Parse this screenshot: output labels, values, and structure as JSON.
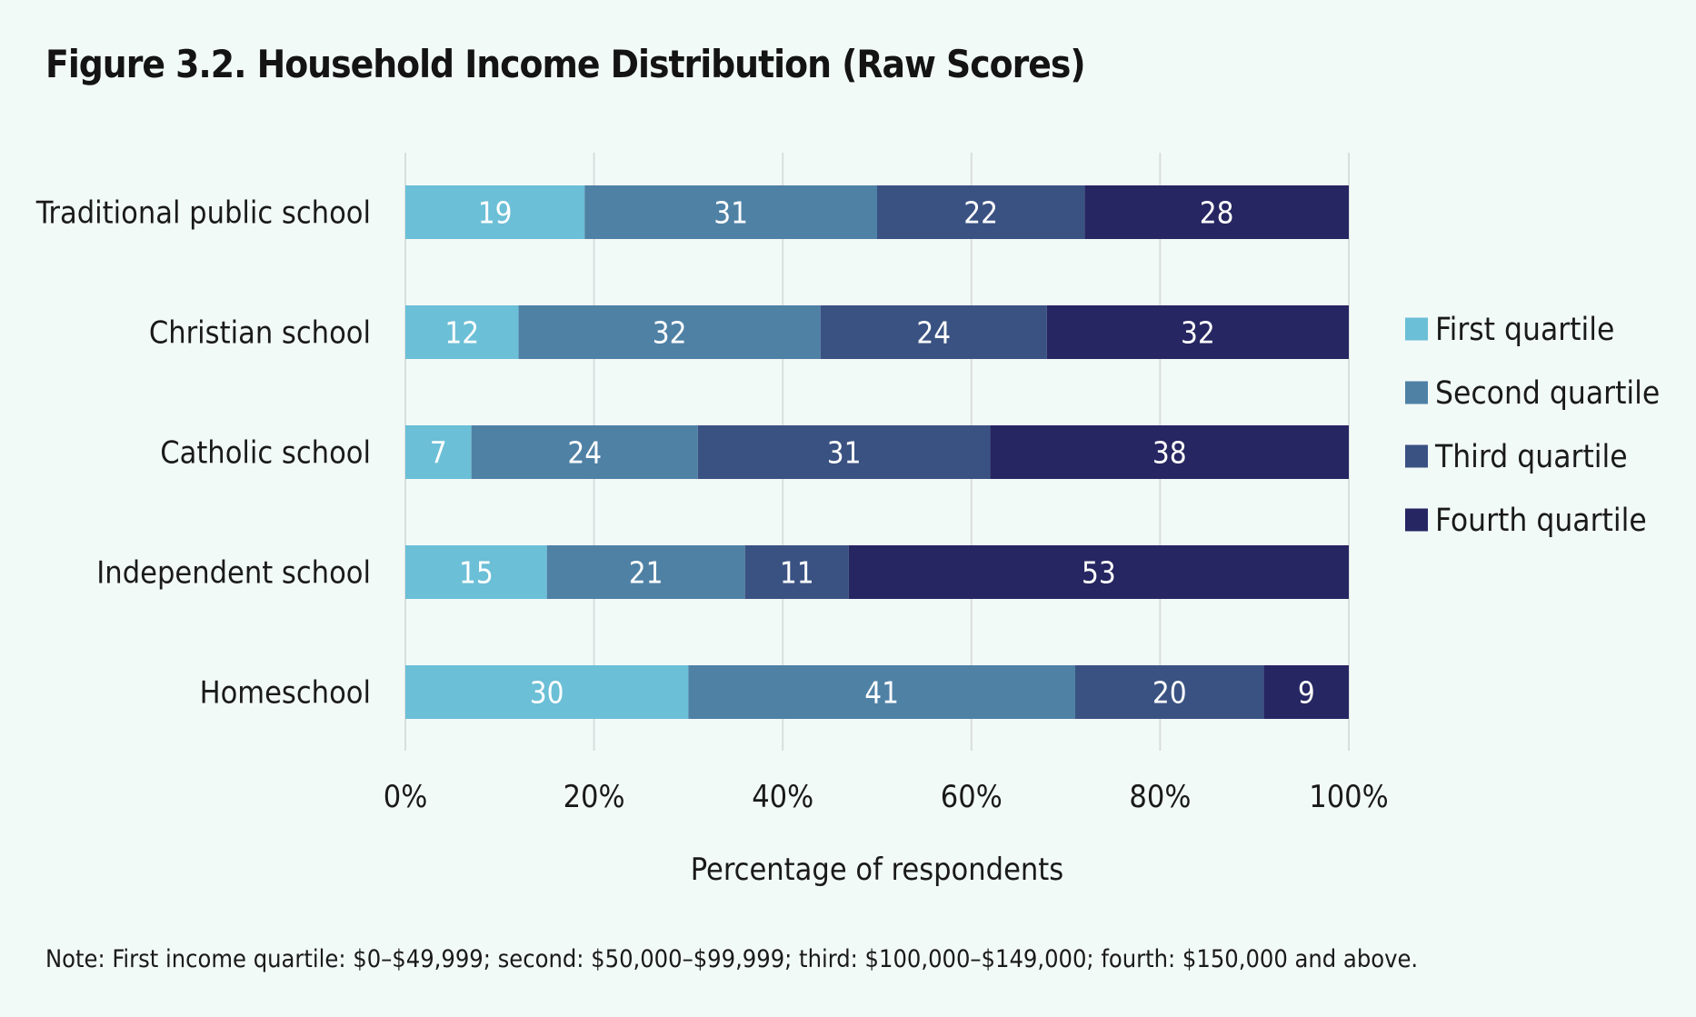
{
  "title": "Figure 3.2. Household Income Distribution (Raw Scores)",
  "note": "Note: First income quartile: $0–$49,999; second: $50,000–$99,999; third: $100,000–$149,000; fourth: $150,000 and above.",
  "chart_data": {
    "type": "bar",
    "orientation": "horizontal",
    "stacked": true,
    "title": "Figure 3.2. Household Income Distribution (Raw Scores)",
    "xlabel": "Percentage of respondents",
    "ylabel": "",
    "xlim": [
      0,
      100
    ],
    "x_ticks": [
      "0%",
      "20%",
      "40%",
      "60%",
      "80%",
      "100%"
    ],
    "grid": true,
    "legend_position": "right",
    "categories": [
      "Traditional public school",
      "Christian school",
      "Catholic school",
      "Independent school",
      "Homeschool"
    ],
    "series": [
      {
        "name": "First quartile",
        "color": "#6bbfd6",
        "values": [
          19,
          12,
          7,
          15,
          30
        ]
      },
      {
        "name": "Second quartile",
        "color": "#4f81a5",
        "values": [
          31,
          32,
          24,
          21,
          41
        ]
      },
      {
        "name": "Third quartile",
        "color": "#3a5282",
        "values": [
          22,
          24,
          31,
          11,
          20
        ]
      },
      {
        "name": "Fourth quartile",
        "color": "#262662",
        "values": [
          28,
          32,
          38,
          53,
          9
        ]
      }
    ]
  }
}
